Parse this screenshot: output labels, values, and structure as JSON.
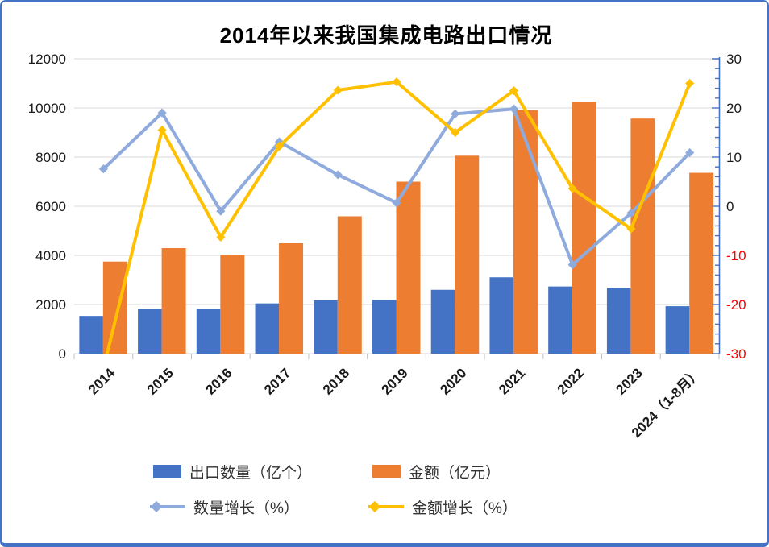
{
  "frame": {
    "border_color": "#4472C4",
    "background": "#FFFFFF"
  },
  "chart_data": {
    "type": "combo",
    "title": "2014年以来我国集成电路出口情况",
    "categories": [
      "2014",
      "2015",
      "2016",
      "2017",
      "2018",
      "2019",
      "2020",
      "2021",
      "2022",
      "2023",
      "2024（1-8月）"
    ],
    "series": [
      {
        "key": "export_quantity",
        "name": "出口数量（亿个）",
        "type": "bar",
        "axis": "left",
        "color": "#4472C4",
        "values": [
          1536,
          1828,
          1810,
          2044,
          2171,
          2187,
          2598,
          3107,
          2734,
          2678,
          1931
        ]
      },
      {
        "key": "export_value",
        "name": "金额（亿元）",
        "type": "bar",
        "axis": "left",
        "color": "#ED7D31",
        "values": [
          3748,
          4295,
          4020,
          4492,
          5591,
          7000,
          8056,
          9920,
          10254,
          9568,
          7360
        ]
      },
      {
        "key": "quantity_growth",
        "name": "数量增长（%）",
        "type": "line",
        "axis": "right",
        "color": "#8FAADC",
        "marker": "diamond",
        "values": [
          7.6,
          19.0,
          -1.0,
          13.1,
          6.4,
          0.7,
          18.8,
          19.8,
          -11.9,
          -1.4,
          10.9
        ]
      },
      {
        "key": "value_growth",
        "name": "金额增长（%）",
        "type": "line",
        "axis": "right",
        "color": "#FFC000",
        "marker": "diamond",
        "values": [
          -33,
          15.5,
          -6.3,
          12.2,
          23.6,
          25.3,
          15.0,
          23.5,
          3.6,
          -4.6,
          25.0
        ]
      }
    ],
    "axes": {
      "left": {
        "min": 0,
        "max": 12000,
        "step": 2000,
        "tick_labels": [
          "0",
          "2000",
          "4000",
          "6000",
          "8000",
          "10000",
          "12000"
        ],
        "label_color": "#1A1A1A"
      },
      "right": {
        "min": -30,
        "max": 30,
        "step": 10,
        "minor_step": 2,
        "tick_labels": [
          "-30",
          "-20",
          "-10",
          "0",
          "10",
          "20",
          "30"
        ],
        "label_color": "#1A1A1A",
        "negative_label_color": "#FF0000",
        "axis_color": "#4472C4"
      }
    },
    "grid": {
      "show": true,
      "color": "#D9D9D9",
      "x_axis_color": "#BFBFBF"
    },
    "legend_position": "bottom"
  }
}
